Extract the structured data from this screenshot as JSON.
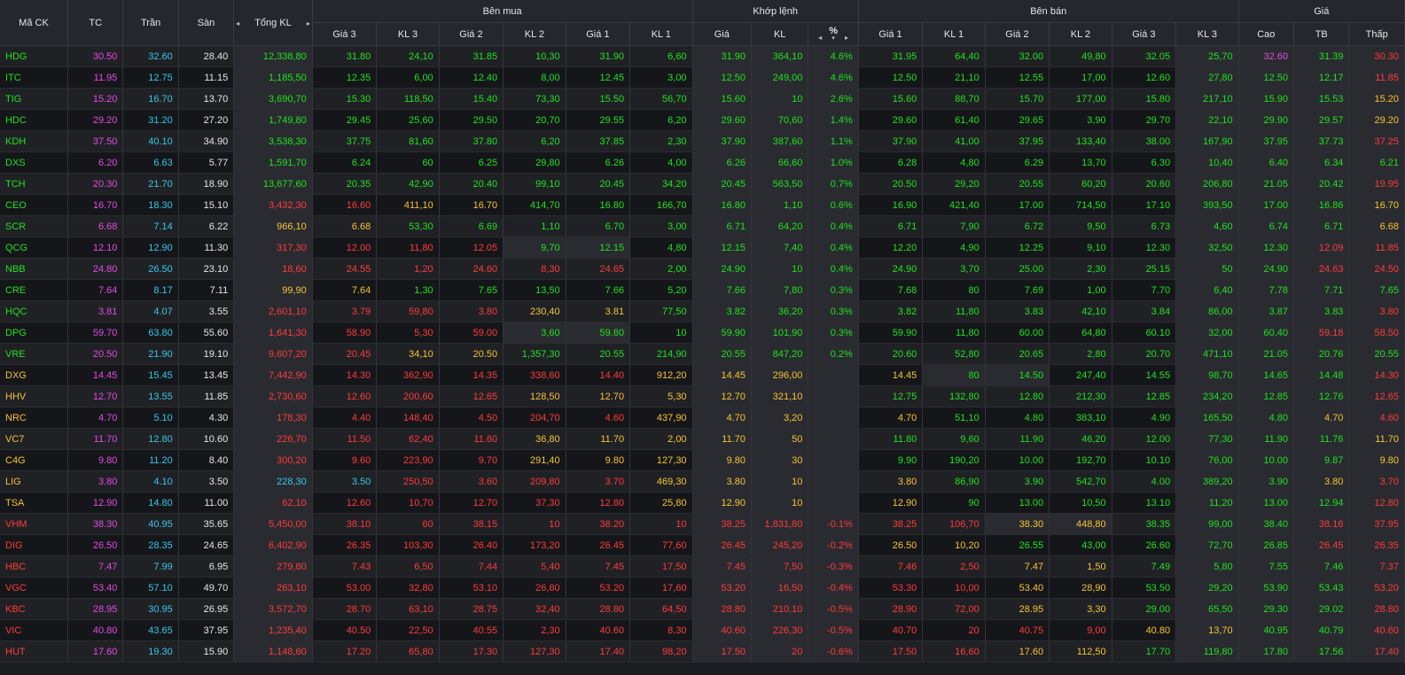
{
  "colors": {
    "up": "#1ee31e",
    "down": "#ff3b3b",
    "ref": "#f5c431",
    "ceil": "#e54ae5",
    "floor": "#35c8e8",
    "neutral": "#e6e6e6"
  },
  "headers": {
    "symbol": "Mã CK",
    "ref": "TC",
    "ceil": "Trần",
    "floor": "Sàn",
    "total_vol": "Tổng KL",
    "buy_group": "Bên mua",
    "match_group": "Khớp lệnh",
    "sell_group": "Bên bán",
    "price_group": "Giá",
    "buy_cols": [
      "Giá 3",
      "KL 3",
      "Giá 2",
      "KL 2",
      "Giá 1",
      "KL 1"
    ],
    "match_cols": [
      "Giá",
      "KL",
      "%"
    ],
    "sell_cols": [
      "Giá 1",
      "KL 1",
      "Giá 2",
      "KL 2",
      "Giá 3",
      "KL 3"
    ],
    "price_cols": [
      "Cao",
      "TB",
      "Thấp"
    ]
  },
  "icons": {
    "left": "◂",
    "right": "▸",
    "sort": "▾"
  },
  "rows": [
    {
      "s": "HDG",
      "c": "u",
      "v": [
        "30.50",
        "32.60",
        "28.40",
        "12,338,80",
        "31.80",
        "24,10",
        "31.85",
        "10,30",
        "31.90",
        "6,60",
        "31.90",
        "364,10",
        "4.6%",
        "31.95",
        "64,40",
        "32.00",
        "49,80",
        "32.05",
        "25,70",
        "32.60",
        "31.39",
        "30.30"
      ],
      "k": "rcfnuuuuuuuuuuuuuuuuCud"
    },
    {
      "s": "ITC",
      "c": "u",
      "v": [
        "11.95",
        "12.75",
        "11.15",
        "1,185,50",
        "12.35",
        "6,00",
        "12.40",
        "8,00",
        "12.45",
        "3,00",
        "12.50",
        "249,00",
        "4.6%",
        "12.50",
        "21,10",
        "12.55",
        "17,00",
        "12.60",
        "27,80",
        "12.50",
        "12.17",
        "11.85"
      ],
      "k": "rcfnuuuuuuuuuuuuuuuuuud"
    },
    {
      "s": "TIG",
      "c": "u",
      "v": [
        "15.20",
        "16.70",
        "13.70",
        "3,690,70",
        "15.30",
        "118,50",
        "15.40",
        "73,30",
        "15.50",
        "56,70",
        "15.60",
        "10",
        "2.6%",
        "15.60",
        "88,70",
        "15.70",
        "177,00",
        "15.80",
        "217,10",
        "15.90",
        "15.53",
        "15.20"
      ],
      "k": "rcfnuuuuuuuuuuuuuuuuuur"
    },
    {
      "s": "HDC",
      "c": "u",
      "v": [
        "29.20",
        "31.20",
        "27.20",
        "1,749,80",
        "29.45",
        "25,60",
        "29.50",
        "20,70",
        "29.55",
        "6,20",
        "29.60",
        "70,60",
        "1.4%",
        "29.60",
        "61,40",
        "29.65",
        "3,90",
        "29.70",
        "22,10",
        "29.90",
        "29.57",
        "29.20"
      ],
      "k": "rcfnuuuuuuuuuuuuuuuuuur"
    },
    {
      "s": "KDH",
      "c": "u",
      "v": [
        "37.50",
        "40.10",
        "34.90",
        "3,538,30",
        "37.75",
        "81,60",
        "37.80",
        "6,20",
        "37.85",
        "2,30",
        "37.90",
        "387,60",
        "1.1%",
        "37.90",
        "41,00",
        "37.95",
        "133,40",
        "38.00",
        "167,90",
        "37.95",
        "37.73",
        "37.25"
      ],
      "k": "rcfnuuuuuuuuuuuuuuuuuud"
    },
    {
      "s": "DXS",
      "c": "u",
      "v": [
        "6.20",
        "6.63",
        "5.77",
        "1,591,70",
        "6.24",
        "60",
        "6.25",
        "29,80",
        "6.26",
        "4,00",
        "6.26",
        "66,60",
        "1.0%",
        "6.28",
        "4,80",
        "6.29",
        "13,70",
        "6.30",
        "10,40",
        "6.40",
        "6.34",
        "6.21"
      ],
      "k": "rcfnuuuuuuuuuuuuuuuuuuu"
    },
    {
      "s": "TCH",
      "c": "u",
      "v": [
        "20.30",
        "21.70",
        "18.90",
        "13,677,60",
        "20.35",
        "42,90",
        "20.40",
        "99,10",
        "20.45",
        "34,20",
        "20.45",
        "563,50",
        "0.7%",
        "20.50",
        "29,20",
        "20.55",
        "60,20",
        "20.60",
        "206,80",
        "21.05",
        "20.42",
        "19.95"
      ],
      "k": "rcfnuuuuuuuuuuuuuuuuuud"
    },
    {
      "s": "CEO",
      "c": "u",
      "v": [
        "16.70",
        "18.30",
        "15.10",
        "3,432,30",
        "16.60",
        "411,10",
        "16.70",
        "414,70",
        "16.80",
        "166,70",
        "16.80",
        "1,10",
        "0.6%",
        "16.90",
        "421,40",
        "17.00",
        "714,50",
        "17.10",
        "393,50",
        "17.00",
        "16.86",
        "16.70"
      ],
      "k": "rcfnddrruuuuuuuuuuuuuur"
    },
    {
      "s": "SCR",
      "c": "u",
      "v": [
        "6.68",
        "7.14",
        "6.22",
        "966,10",
        "6.68",
        "53,30",
        "6.69",
        "1,10",
        "6.70",
        "3,00",
        "6.71",
        "64,20",
        "0.4%",
        "6.71",
        "7,90",
        "6.72",
        "9,50",
        "6.73",
        "4,60",
        "6.74",
        "6.71",
        "6.68"
      ],
      "k": "rcfnrruuuuuuuuuuuuuuuur"
    },
    {
      "s": "QCG",
      "c": "u",
      "v": [
        "12.10",
        "12.90",
        "11.30",
        "317,30",
        "12.00",
        "11,80",
        "12.05",
        "9,70",
        "12.15",
        "4,80",
        "12.15",
        "7,40",
        "0.4%",
        "12.20",
        "4,90",
        "12.25",
        "9,10",
        "12.30",
        "32,50",
        "12.30",
        "12.09",
        "11.85"
      ],
      "k": "rcfnddddUUuuuuuuuuuuudd"
    },
    {
      "s": "NBB",
      "c": "u",
      "v": [
        "24.80",
        "26.50",
        "23.10",
        "18,60",
        "24.55",
        "1,20",
        "24.60",
        "8,30",
        "24.65",
        "2,00",
        "24.90",
        "10",
        "0.4%",
        "24.90",
        "3,70",
        "25.00",
        "2,30",
        "25.15",
        "50",
        "24.90",
        "24.63",
        "24.50"
      ],
      "k": "rcfndddddduuuuuuuuuuudd"
    },
    {
      "s": "CRE",
      "c": "u",
      "v": [
        "7.64",
        "8.17",
        "7.11",
        "99,90",
        "7.64",
        "1,30",
        "7.65",
        "13,50",
        "7.66",
        "5,20",
        "7.66",
        "7,80",
        "0.3%",
        "7.68",
        "80",
        "7.69",
        "1,00",
        "7.70",
        "6,40",
        "7.78",
        "7.71",
        "7.65"
      ],
      "k": "rcfnrruuuuuuuuuuuuuuuuu"
    },
    {
      "s": "HQC",
      "c": "u",
      "v": [
        "3.81",
        "4.07",
        "3.55",
        "2,601,10",
        "3.79",
        "59,80",
        "3.80",
        "230,40",
        "3.81",
        "77,50",
        "3.82",
        "36,20",
        "0.3%",
        "3.82",
        "11,80",
        "3.83",
        "42,10",
        "3.84",
        "86,00",
        "3.87",
        "3.83",
        "3.80"
      ],
      "k": "rcfnddddrruuuuuuuuuuuud"
    },
    {
      "s": "DPG",
      "c": "u",
      "v": [
        "59.70",
        "63.80",
        "55.60",
        "1,641,30",
        "58.90",
        "5,30",
        "59.00",
        "3,60",
        "59.80",
        "10",
        "59.90",
        "101,90",
        "0.3%",
        "59.90",
        "11,80",
        "60.00",
        "64,80",
        "60.10",
        "32,00",
        "60.40",
        "59.18",
        "58.50"
      ],
      "k": "rcfnddddUUuuuuuuuuuuudd"
    },
    {
      "s": "VRE",
      "c": "u",
      "v": [
        "20.50",
        "21.90",
        "19.10",
        "9,607,20",
        "20.45",
        "34,10",
        "20.50",
        "1,357,30",
        "20.55",
        "214,90",
        "20.55",
        "847,20",
        "0.2%",
        "20.60",
        "52,80",
        "20.65",
        "2,80",
        "20.70",
        "471,10",
        "21.05",
        "20.76",
        "20.55"
      ],
      "k": "rcfnddrruuuuuuuuuuuuuuu"
    },
    {
      "s": "DXG",
      "c": "r",
      "v": [
        "14.45",
        "15.45",
        "13.45",
        "7,442,90",
        "14.30",
        "362,90",
        "14.35",
        "338,60",
        "14.40",
        "912,20",
        "14.45",
        "296,00",
        "",
        "14.45",
        "80",
        "14.50",
        "247,40",
        "14.55",
        "98,70",
        "14.65",
        "14.48",
        "14.30"
      ],
      "k": "rcfnddddddrrrrrUUuuuuud"
    },
    {
      "s": "HHV",
      "c": "r",
      "v": [
        "12.70",
        "13.55",
        "11.85",
        "2,730,60",
        "12.60",
        "200,60",
        "12.65",
        "128,50",
        "12.70",
        "5,30",
        "12.70",
        "321,10",
        "",
        "12.75",
        "132,80",
        "12.80",
        "212,30",
        "12.85",
        "234,20",
        "12.85",
        "12.76",
        "12.65"
      ],
      "k": "rcfnddddrrrrruuuuuuuuud"
    },
    {
      "s": "NRC",
      "c": "r",
      "v": [
        "4.70",
        "5.10",
        "4.30",
        "178,30",
        "4.40",
        "148,40",
        "4.50",
        "204,70",
        "4.60",
        "437,90",
        "4.70",
        "3,20",
        "",
        "4.70",
        "51,10",
        "4.80",
        "383,10",
        "4.90",
        "165,50",
        "4.80",
        "4.70",
        "4.60"
      ],
      "k": "rcfnddddddrrrrruuuuuurd"
    },
    {
      "s": "VC7",
      "c": "r",
      "v": [
        "11.70",
        "12.80",
        "10.60",
        "226,70",
        "11.50",
        "62,40",
        "11.60",
        "36,80",
        "11.70",
        "2,00",
        "11.70",
        "50",
        "",
        "11.80",
        "9,60",
        "11.90",
        "46,20",
        "12.00",
        "77,30",
        "11.90",
        "11.76",
        "11.70"
      ],
      "k": "rcfnddddrrrrruuuuuuuuur"
    },
    {
      "s": "C4G",
      "c": "r",
      "v": [
        "9.80",
        "11.20",
        "8.40",
        "300,20",
        "9.60",
        "223,90",
        "9.70",
        "291,40",
        "9.80",
        "127,30",
        "9.80",
        "30",
        "",
        "9.90",
        "190,20",
        "10.00",
        "192,70",
        "10.10",
        "76,00",
        "10.00",
        "9.87",
        "9.80"
      ],
      "k": "rcfnddddrrrrruuuuuuuuur"
    },
    {
      "s": "LIG",
      "c": "r",
      "v": [
        "3.80",
        "4.10",
        "3.50",
        "228,30",
        "3.50",
        "250,50",
        "3.60",
        "209,80",
        "3.70",
        "469,30",
        "3.80",
        "10",
        "",
        "3.80",
        "86,90",
        "3.90",
        "542,70",
        "4.00",
        "389,20",
        "3.90",
        "3.80",
        "3.70"
      ],
      "k": "rcfnffddddrrrrruuuuuurd"
    },
    {
      "s": "TSA",
      "c": "r",
      "v": [
        "12.90",
        "14.80",
        "11.00",
        "62,10",
        "12.60",
        "10,70",
        "12.70",
        "37,30",
        "12.80",
        "25,80",
        "12.90",
        "10",
        "",
        "12.90",
        "90",
        "13.00",
        "10,50",
        "13.10",
        "11,20",
        "13.00",
        "12.94",
        "12.80"
      ],
      "k": "rcfnddddddrrrrruuuuuuud"
    },
    {
      "s": "VHM",
      "c": "d",
      "v": [
        "38.30",
        "40.95",
        "35.65",
        "5,450,00",
        "38.10",
        "60",
        "38.15",
        "10",
        "38.20",
        "10",
        "38.25",
        "1,831,80",
        "-0.1%",
        "38.25",
        "106,70",
        "38.30",
        "448,80",
        "38.35",
        "99,00",
        "38.40",
        "38.16",
        "37.95"
      ],
      "k": "rcfnddddddddddddRRuuudd"
    },
    {
      "s": "DIG",
      "c": "d",
      "v": [
        "26.50",
        "28.35",
        "24.65",
        "6,402,90",
        "26.35",
        "103,30",
        "26.40",
        "173,20",
        "26.45",
        "77,60",
        "26.45",
        "245,20",
        "-0.2%",
        "26.50",
        "10,20",
        "26.55",
        "43,00",
        "26.60",
        "72,70",
        "26.85",
        "26.45",
        "26.35"
      ],
      "k": "rcfnddddddddddrruuuuudd"
    },
    {
      "s": "HBC",
      "c": "d",
      "v": [
        "7.47",
        "7.99",
        "6.95",
        "279,80",
        "7.43",
        "6,50",
        "7.44",
        "5,40",
        "7.45",
        "17,50",
        "7.45",
        "7,50",
        "-0.3%",
        "7.46",
        "2,50",
        "7.47",
        "1,50",
        "7.49",
        "5,80",
        "7.55",
        "7.46",
        "7.37"
      ],
      "k": "rcfnddddddddddddrruuuud"
    },
    {
      "s": "VGC",
      "c": "d",
      "v": [
        "53.40",
        "57.10",
        "49.70",
        "263,10",
        "53.00",
        "32,80",
        "53.10",
        "26,80",
        "53.20",
        "17,60",
        "53.20",
        "16,50",
        "-0.4%",
        "53.30",
        "10,00",
        "53.40",
        "28,90",
        "53.50",
        "29,20",
        "53.90",
        "53.43",
        "53.20"
      ],
      "k": "rcfnddddddddddddrruuuud"
    },
    {
      "s": "KBC",
      "c": "d",
      "v": [
        "28.95",
        "30.95",
        "26.95",
        "3,572,70",
        "28.70",
        "63,10",
        "28.75",
        "32,40",
        "28.80",
        "64,50",
        "28.80",
        "210,10",
        "-0.5%",
        "28.90",
        "72,00",
        "28.95",
        "3,30",
        "29.00",
        "65,50",
        "29.30",
        "29.02",
        "28.80"
      ],
      "k": "rcfnddddddddddddrruuuud"
    },
    {
      "s": "VIC",
      "c": "d",
      "v": [
        "40.80",
        "43.65",
        "37.95",
        "1,235,40",
        "40.50",
        "22,50",
        "40.55",
        "2,30",
        "40.60",
        "8,30",
        "40.60",
        "226,30",
        "-0.5%",
        "40.70",
        "20",
        "40.75",
        "9,00",
        "40.80",
        "13,70",
        "40.95",
        "40.79",
        "40.60"
      ],
      "k": "rcfnddddddddddddddrruud"
    },
    {
      "s": "HUT",
      "c": "d",
      "v": [
        "17.60",
        "19.30",
        "15.90",
        "1,148,60",
        "17.20",
        "65,80",
        "17.30",
        "127,30",
        "17.40",
        "98,20",
        "17.50",
        "20",
        "-0.6%",
        "17.50",
        "16,60",
        "17.60",
        "112,50",
        "17.70",
        "119,80",
        "17.80",
        "17.56",
        "17.40"
      ],
      "k": "rcfnddddddddddddrruuuud"
    }
  ]
}
